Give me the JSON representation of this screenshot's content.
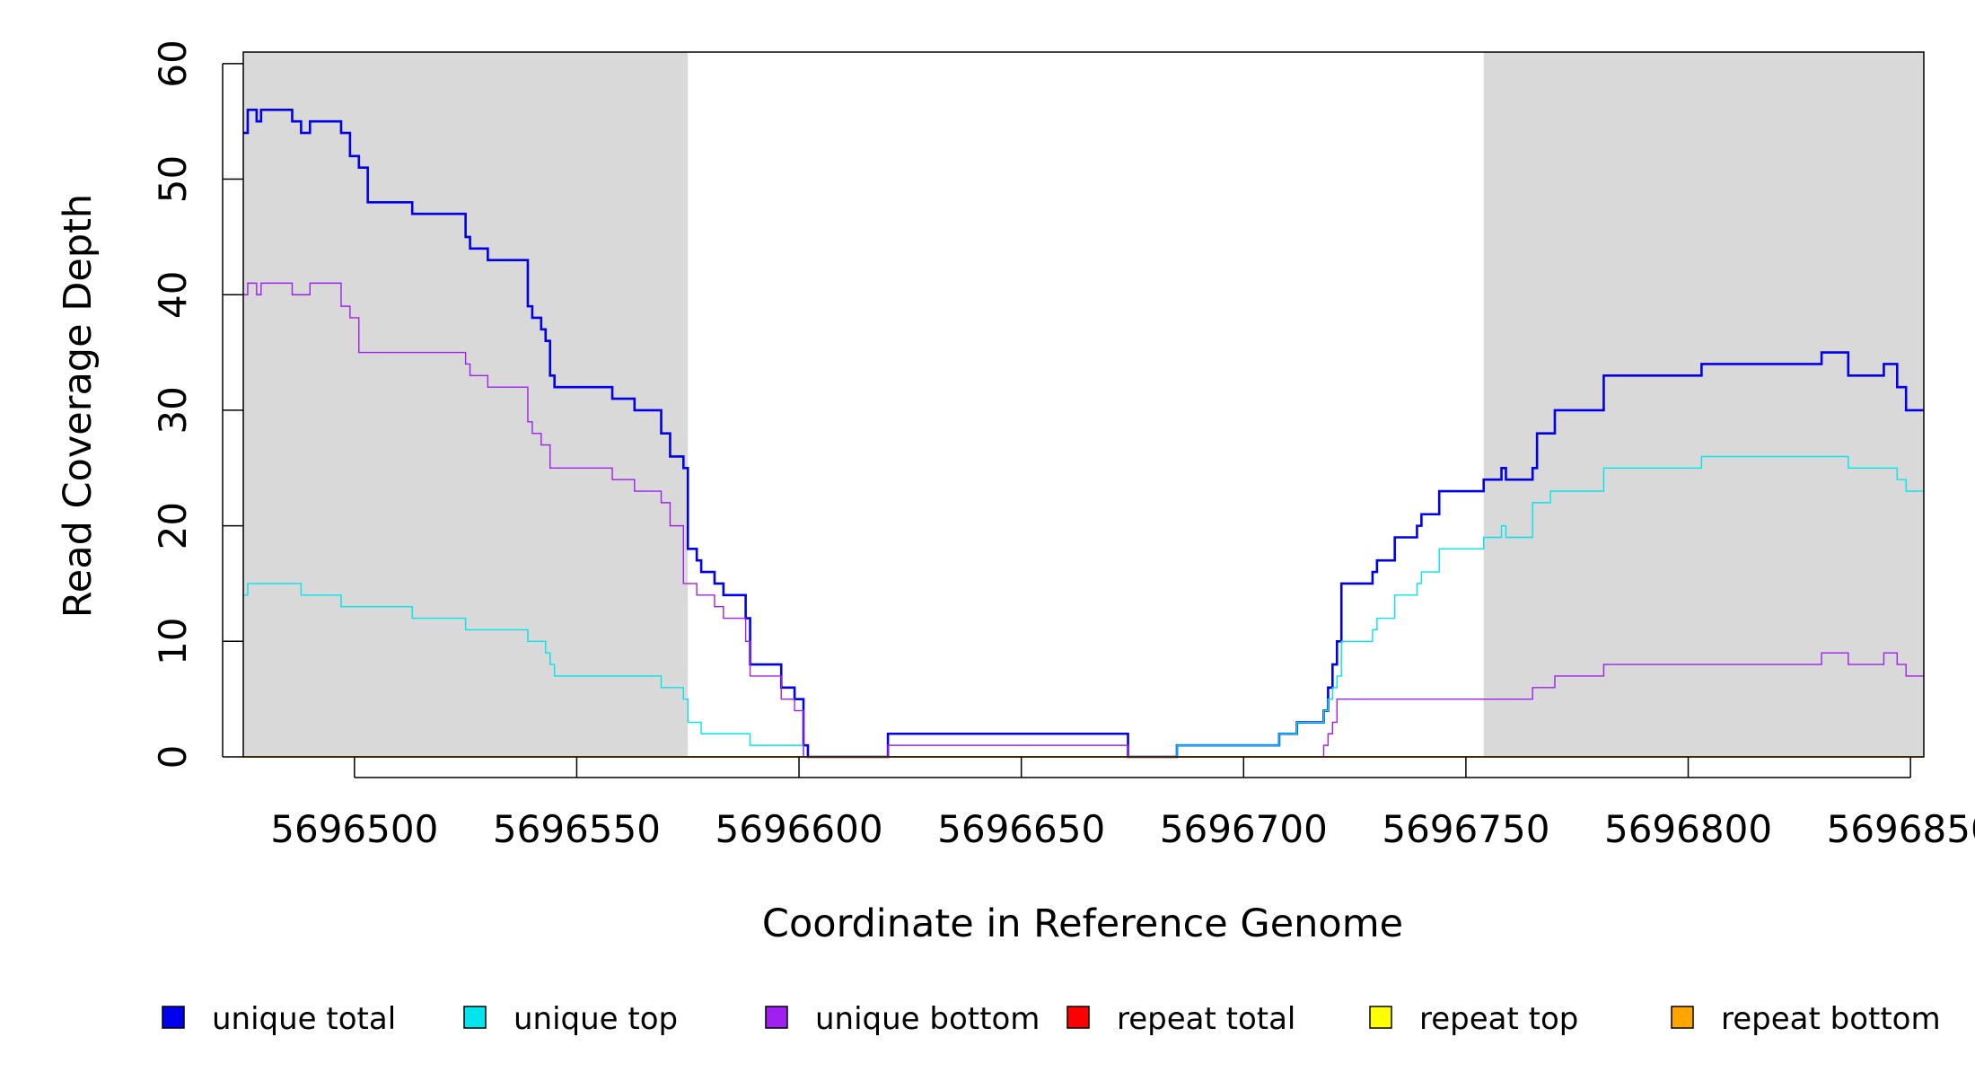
{
  "chart_data": {
    "type": "line",
    "step": true,
    "xlabel": "Coordinate in Reference Genome",
    "ylabel": "Read Coverage Depth",
    "xlim": [
      5696475,
      5696853
    ],
    "ylim": [
      0,
      61
    ],
    "x_ticks": [
      5696500,
      5696550,
      5696600,
      5696650,
      5696700,
      5696750,
      5696800,
      5696850
    ],
    "x_tick_labels": [
      "5696500",
      "5696550",
      "5696600",
      "5696650",
      "5696700",
      "5696750",
      "5696800",
      "5696850"
    ],
    "y_ticks": [
      0,
      10,
      20,
      30,
      40,
      50,
      60
    ],
    "y_tick_labels": [
      "0",
      "10",
      "20",
      "30",
      "40",
      "50",
      "60"
    ],
    "shaded_regions": [
      [
        5696475,
        5696575
      ],
      [
        5696754,
        5696853
      ]
    ],
    "shade_color": "#d9d9d9",
    "legend_position": "bottom",
    "legend": [
      {
        "label": "unique total",
        "color": "#0000ee"
      },
      {
        "label": "unique top",
        "color": "#00e5ee"
      },
      {
        "label": "unique bottom",
        "color": "#a020f0"
      },
      {
        "label": "repeat total",
        "color": "#ff0000"
      },
      {
        "label": "repeat top",
        "color": "#ffff00"
      },
      {
        "label": "repeat bottom",
        "color": "#ffa500"
      }
    ],
    "series": [
      {
        "name": "unique total",
        "color": "#0000ee",
        "width": 2.6,
        "points": [
          [
            5696475,
            54
          ],
          [
            5696476,
            56
          ],
          [
            5696478,
            55
          ],
          [
            5696479,
            56
          ],
          [
            5696486,
            55
          ],
          [
            5696488,
            54
          ],
          [
            5696490,
            55
          ],
          [
            5696497,
            54
          ],
          [
            5696499,
            52
          ],
          [
            5696501,
            51
          ],
          [
            5696503,
            48
          ],
          [
            5696513,
            47
          ],
          [
            5696525,
            45
          ],
          [
            5696526,
            44
          ],
          [
            5696530,
            43
          ],
          [
            5696539,
            39
          ],
          [
            5696540,
            38
          ],
          [
            5696542,
            37
          ],
          [
            5696543,
            36
          ],
          [
            5696544,
            33
          ],
          [
            5696545,
            32
          ],
          [
            5696558,
            31
          ],
          [
            5696563,
            30
          ],
          [
            5696569,
            28
          ],
          [
            5696571,
            26
          ],
          [
            5696574,
            25
          ],
          [
            5696575,
            18
          ],
          [
            5696577,
            17
          ],
          [
            5696578,
            16
          ],
          [
            5696581,
            15
          ],
          [
            5696583,
            14
          ],
          [
            5696588,
            12
          ],
          [
            5696589,
            8
          ],
          [
            5696596,
            6
          ],
          [
            5696599,
            5
          ],
          [
            5696601,
            1
          ],
          [
            5696602,
            0
          ],
          [
            5696620,
            2
          ],
          [
            5696674,
            0
          ],
          [
            5696685,
            1
          ],
          [
            5696708,
            2
          ],
          [
            5696712,
            3
          ],
          [
            5696718,
            4
          ],
          [
            5696719,
            6
          ],
          [
            5696720,
            8
          ],
          [
            5696721,
            10
          ],
          [
            5696722,
            15
          ],
          [
            5696729,
            16
          ],
          [
            5696730,
            17
          ],
          [
            5696734,
            19
          ],
          [
            5696739,
            20
          ],
          [
            5696740,
            21
          ],
          [
            5696744,
            23
          ],
          [
            5696754,
            24
          ],
          [
            5696758,
            25
          ],
          [
            5696759,
            24
          ],
          [
            5696765,
            25
          ],
          [
            5696766,
            28
          ],
          [
            5696770,
            30
          ],
          [
            5696781,
            33
          ],
          [
            5696803,
            34
          ],
          [
            5696830,
            35
          ],
          [
            5696836,
            33
          ],
          [
            5696844,
            34
          ],
          [
            5696847,
            32
          ],
          [
            5696849,
            30
          ],
          [
            5696853,
            30
          ]
        ]
      },
      {
        "name": "unique top",
        "color": "#00e5ee",
        "width": 1.4,
        "points": [
          [
            5696475,
            14
          ],
          [
            5696476,
            15
          ],
          [
            5696488,
            14
          ],
          [
            5696497,
            13
          ],
          [
            5696513,
            12
          ],
          [
            5696525,
            11
          ],
          [
            5696539,
            10
          ],
          [
            5696543,
            9
          ],
          [
            5696544,
            8
          ],
          [
            5696545,
            7
          ],
          [
            5696569,
            6
          ],
          [
            5696574,
            5
          ],
          [
            5696575,
            3
          ],
          [
            5696578,
            2
          ],
          [
            5696589,
            1
          ],
          [
            5696601,
            0
          ],
          [
            5696685,
            1
          ],
          [
            5696708,
            2
          ],
          [
            5696712,
            3
          ],
          [
            5696718,
            4
          ],
          [
            5696719,
            5
          ],
          [
            5696720,
            6
          ],
          [
            5696721,
            7
          ],
          [
            5696722,
            10
          ],
          [
            5696729,
            11
          ],
          [
            5696730,
            12
          ],
          [
            5696734,
            14
          ],
          [
            5696739,
            15
          ],
          [
            5696740,
            16
          ],
          [
            5696744,
            18
          ],
          [
            5696754,
            19
          ],
          [
            5696758,
            20
          ],
          [
            5696759,
            19
          ],
          [
            5696765,
            22
          ],
          [
            5696766,
            22
          ],
          [
            5696769,
            23
          ],
          [
            5696781,
            25
          ],
          [
            5696803,
            26
          ],
          [
            5696836,
            25
          ],
          [
            5696847,
            24
          ],
          [
            5696849,
            23
          ],
          [
            5696853,
            23
          ]
        ]
      },
      {
        "name": "unique bottom",
        "color": "#a020f0",
        "width": 1.4,
        "points": [
          [
            5696475,
            40
          ],
          [
            5696476,
            41
          ],
          [
            5696478,
            40
          ],
          [
            5696479,
            41
          ],
          [
            5696486,
            40
          ],
          [
            5696490,
            41
          ],
          [
            5696497,
            39
          ],
          [
            5696499,
            38
          ],
          [
            5696501,
            35
          ],
          [
            5696525,
            34
          ],
          [
            5696526,
            33
          ],
          [
            5696530,
            32
          ],
          [
            5696539,
            29
          ],
          [
            5696540,
            28
          ],
          [
            5696542,
            27
          ],
          [
            5696544,
            25
          ],
          [
            5696558,
            24
          ],
          [
            5696563,
            23
          ],
          [
            5696569,
            22
          ],
          [
            5696571,
            20
          ],
          [
            5696574,
            15
          ],
          [
            5696577,
            14
          ],
          [
            5696581,
            13
          ],
          [
            5696583,
            12
          ],
          [
            5696588,
            10
          ],
          [
            5696589,
            7
          ],
          [
            5696596,
            5
          ],
          [
            5696599,
            4
          ],
          [
            5696601,
            0
          ],
          [
            5696620,
            1
          ],
          [
            5696674,
            0
          ],
          [
            5696718,
            1
          ],
          [
            5696719,
            2
          ],
          [
            5696720,
            3
          ],
          [
            5696721,
            5
          ],
          [
            5696754,
            5
          ],
          [
            5696765,
            6
          ],
          [
            5696770,
            7
          ],
          [
            5696781,
            8
          ],
          [
            5696830,
            9
          ],
          [
            5696836,
            8
          ],
          [
            5696844,
            9
          ],
          [
            5696847,
            8
          ],
          [
            5696849,
            7
          ],
          [
            5696853,
            7
          ]
        ]
      },
      {
        "name": "repeat total",
        "color": "#ff0000",
        "width": 1.4,
        "points": [
          [
            5696475,
            0
          ],
          [
            5696853,
            0
          ]
        ]
      },
      {
        "name": "repeat top",
        "color": "#ffff00",
        "width": 1.4,
        "points": [
          [
            5696475,
            0
          ],
          [
            5696853,
            0
          ]
        ]
      },
      {
        "name": "repeat bottom",
        "color": "#ffa500",
        "width": 1.4,
        "points": [
          [
            5696475,
            0
          ],
          [
            5696853,
            0
          ]
        ]
      }
    ]
  }
}
